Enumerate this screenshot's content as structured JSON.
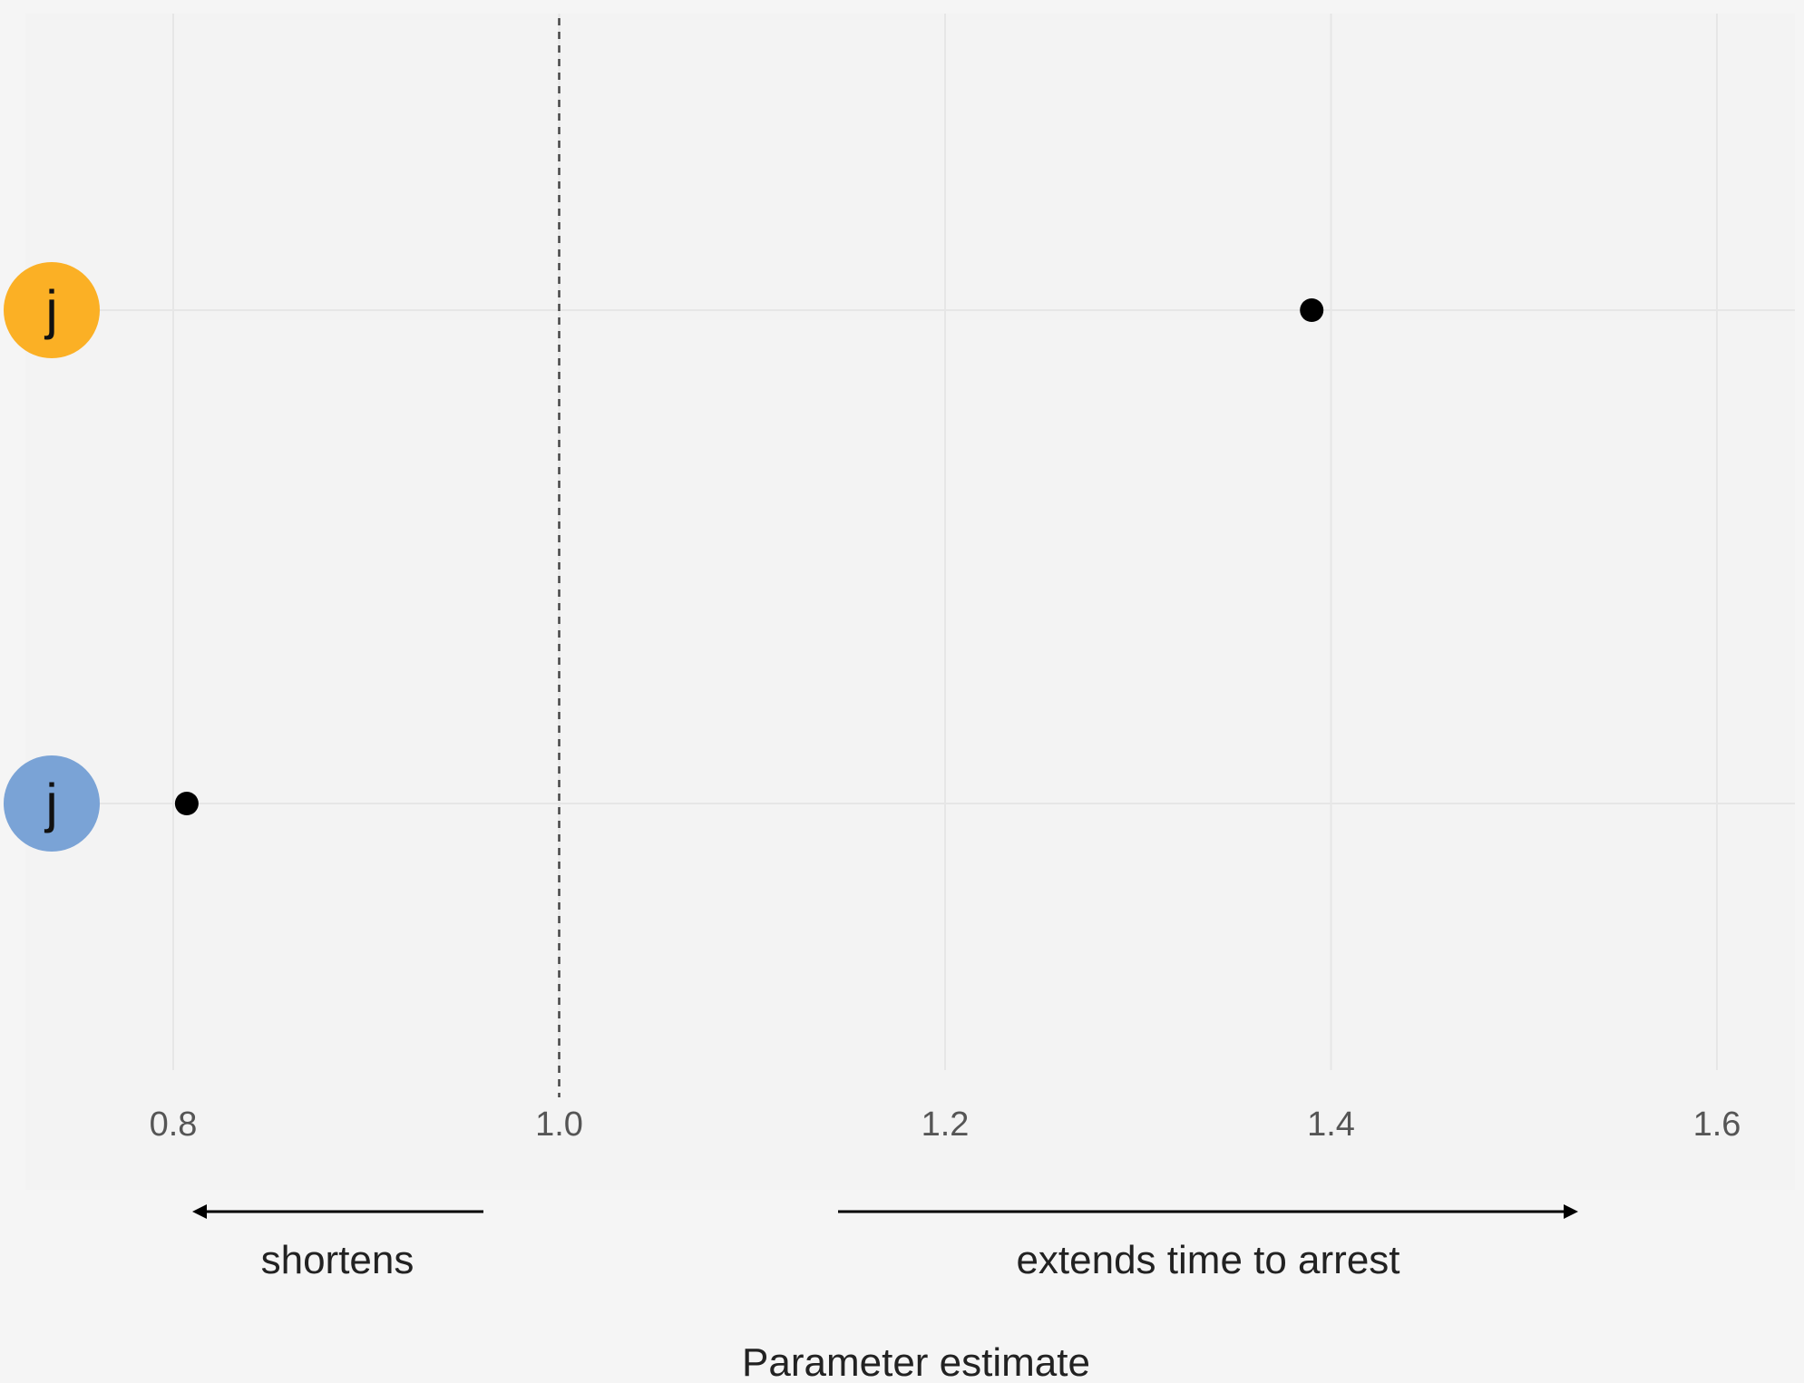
{
  "chart_data": {
    "type": "scatter",
    "xlabel": "Parameter estimate",
    "xlim": [
      0.76,
      1.62
    ],
    "x_ticks": [
      0.8,
      1.0,
      1.2,
      1.4,
      1.6
    ],
    "x_tick_labels": [
      "0.8",
      "1.0",
      "1.2",
      "1.4",
      "1.6"
    ],
    "reference_line": 1.0,
    "categories": [
      {
        "label": "j",
        "color": "#fbb025",
        "value": 1.39
      },
      {
        "label": "j",
        "color": "#7aa3d6",
        "value": 0.807
      }
    ],
    "annotations": {
      "left": "shortens",
      "right": "extends time to arrest"
    },
    "panel_color": "#f3f3f3",
    "grid": true
  }
}
